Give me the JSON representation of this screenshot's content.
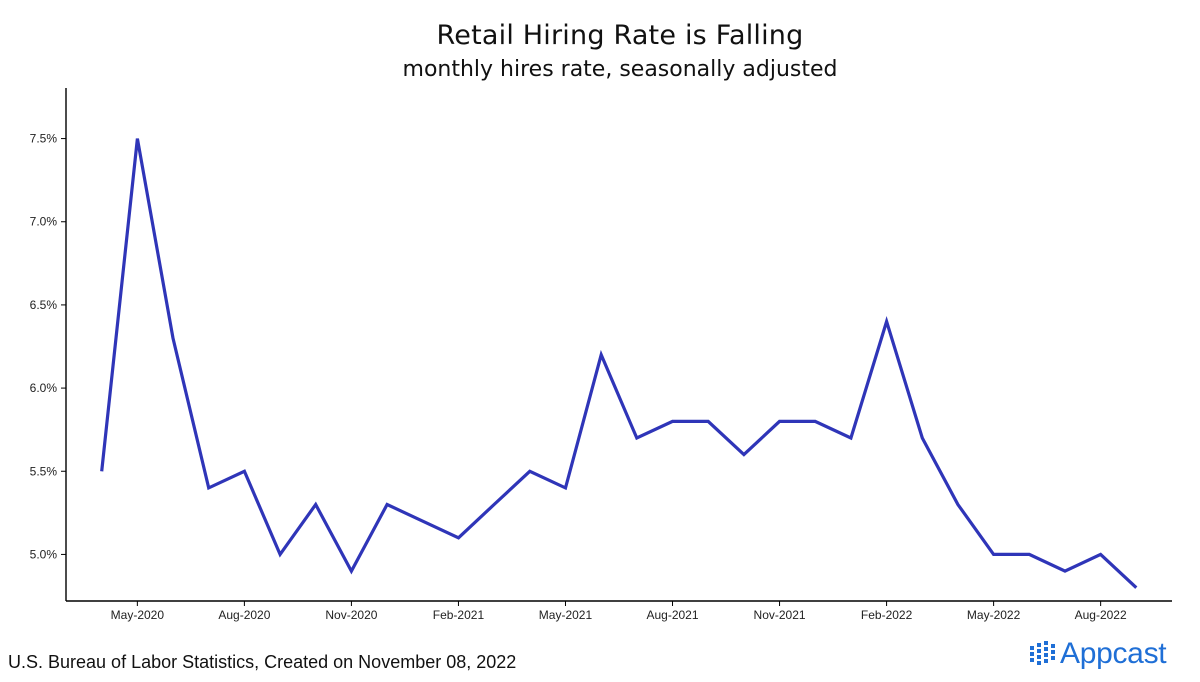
{
  "chart_data": {
    "type": "line",
    "title": "Retail Hiring Rate is Falling",
    "subtitle": "monthly hires rate, seasonally adjusted",
    "xlabel": "",
    "ylabel": "",
    "x": [
      "2020-04",
      "2020-05",
      "2020-06",
      "2020-07",
      "2020-08",
      "2020-09",
      "2020-10",
      "2020-11",
      "2020-12",
      "2021-01",
      "2021-02",
      "2021-03",
      "2021-04",
      "2021-05",
      "2021-06",
      "2021-07",
      "2021-08",
      "2021-09",
      "2021-10",
      "2021-11",
      "2021-12",
      "2022-01",
      "2022-02",
      "2022-03",
      "2022-04",
      "2022-05",
      "2022-06",
      "2022-07",
      "2022-08",
      "2022-09"
    ],
    "series": [
      {
        "color": "#2f35b8",
        "values": [
          5.5,
          7.5,
          6.3,
          5.4,
          5.5,
          5.0,
          5.3,
          4.9,
          5.3,
          5.2,
          5.1,
          5.3,
          5.5,
          5.4,
          6.2,
          5.7,
          5.8,
          5.8,
          5.6,
          5.8,
          5.8,
          5.7,
          6.4,
          5.7,
          5.3,
          5.0,
          5.0,
          4.9,
          5.0,
          4.8
        ]
      }
    ],
    "x_ticks": [
      "May-2020",
      "Aug-2020",
      "Nov-2020",
      "Feb-2021",
      "May-2021",
      "Aug-2021",
      "Nov-2021",
      "Feb-2022",
      "May-2022",
      "Aug-2022"
    ],
    "x_tick_dates": [
      "2020-05",
      "2020-08",
      "2020-11",
      "2021-02",
      "2021-05",
      "2021-08",
      "2021-11",
      "2022-02",
      "2022-05",
      "2022-08"
    ],
    "y_ticks": [
      5.0,
      5.5,
      6.0,
      6.5,
      7.0,
      7.5
    ],
    "y_tick_labels": [
      "5.0%",
      "5.5%",
      "6.0%",
      "6.5%",
      "7.0%",
      "7.5%"
    ],
    "ylim": [
      4.72,
      7.78
    ],
    "xlim": [
      "2020-03",
      "2022-10"
    ],
    "grid": false,
    "legend": "none"
  },
  "footer": {
    "source": "U.S. Bureau of Labor Statistics, Created on November 08, 2022",
    "brand": "Appcast",
    "brand_color": "#1f6fd6"
  }
}
